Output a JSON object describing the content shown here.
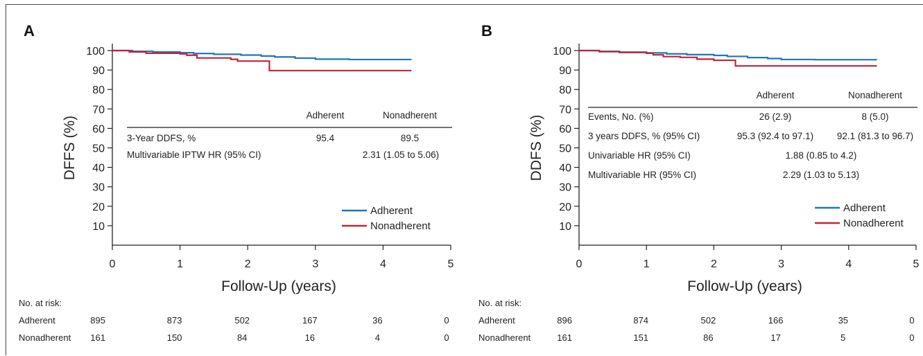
{
  "colors": {
    "adherent": "#1f77b4",
    "nonadherent": "#c0243a"
  },
  "panels": [
    {
      "label": "A",
      "ylabel": "DFFS (%)",
      "xlabel": "Follow-Up (years)",
      "table": {
        "headers": [
          "Adherent",
          "Nonadherent"
        ],
        "rows": [
          {
            "label": "3-Year DDFS, %",
            "adherent": "95.4",
            "nonadherent": "89.5"
          },
          {
            "label": "Multivariable IPTW HR (95% CI)",
            "merged": "2.31 (1.05 to 5.06)"
          }
        ]
      },
      "legend": [
        "Adherent",
        "Nonadherent"
      ],
      "risk": {
        "title": "No. at risk:",
        "rows": [
          {
            "label": "Adherent",
            "values": [
              "895",
              "873",
              "502",
              "167",
              "36",
              "0"
            ]
          },
          {
            "label": "Nonadherent",
            "values": [
              "161",
              "150",
              "84",
              "16",
              "4",
              "0"
            ]
          }
        ]
      }
    },
    {
      "label": "B",
      "ylabel": "DDFS (%)",
      "xlabel": "Follow-Up (years)",
      "table": {
        "headers": [
          "Adherent",
          "Nonadherent"
        ],
        "rows": [
          {
            "label": "Events, No. (%)",
            "adherent": "26 (2.9)",
            "nonadherent": "8 (5.0)"
          },
          {
            "label": "3 years DDFS, % (95% CI)",
            "adherent": "95.3 (92.4 to 97.1)",
            "nonadherent": "92.1 (81.3 to 96.7)"
          },
          {
            "label": "Univariable HR (95% CI)",
            "merged": "1.88 (0.85 to 4.2)"
          },
          {
            "label": "Multivariable HR (95% CI)",
            "merged": "2.29 (1.03 to 5.13)"
          }
        ]
      },
      "legend": [
        "Adherent",
        "Nonadherent"
      ],
      "risk": {
        "title": "No. at risk:",
        "rows": [
          {
            "label": "Adherent",
            "values": [
              "896",
              "874",
              "502",
              "166",
              "35",
              "0"
            ]
          },
          {
            "label": "Nonadherent",
            "values": [
              "161",
              "151",
              "86",
              "17",
              "5",
              "0"
            ]
          }
        ]
      }
    }
  ],
  "chart_data": [
    {
      "type": "line",
      "xlabel": "Follow-Up (years)",
      "ylabel": "DFFS (%)",
      "xlim": [
        0,
        5
      ],
      "ylim": [
        0,
        100
      ],
      "xticks": [
        0,
        1,
        2,
        3,
        4,
        5
      ],
      "yticks": [
        10,
        20,
        30,
        40,
        50,
        60,
        70,
        80,
        90,
        100
      ],
      "grid": false,
      "legend_position": "bottom-right",
      "series": [
        {
          "name": "Adherent",
          "points": [
            [
              0,
              100
            ],
            [
              0.3,
              99.6
            ],
            [
              0.6,
              99.3
            ],
            [
              1.0,
              98.9
            ],
            [
              1.2,
              98.5
            ],
            [
              1.5,
              98.1
            ],
            [
              1.9,
              97.7
            ],
            [
              2.2,
              97.2
            ],
            [
              2.4,
              96.7
            ],
            [
              2.7,
              96.1
            ],
            [
              3.0,
              95.6
            ],
            [
              3.5,
              95.4
            ],
            [
              4.42,
              95.4
            ]
          ]
        },
        {
          "name": "Nonadherent",
          "points": [
            [
              0,
              100
            ],
            [
              0.25,
              99.3
            ],
            [
              0.5,
              98.6
            ],
            [
              1.0,
              98.3
            ],
            [
              1.1,
              97.6
            ],
            [
              1.25,
              96.2
            ],
            [
              1.65,
              96.2
            ],
            [
              1.75,
              95.5
            ],
            [
              1.85,
              94.6
            ],
            [
              2.3,
              94.6
            ],
            [
              2.32,
              89.7
            ],
            [
              4.42,
              89.7
            ]
          ]
        }
      ]
    },
    {
      "type": "line",
      "xlabel": "Follow-Up (years)",
      "ylabel": "DDFS (%)",
      "xlim": [
        0,
        5
      ],
      "ylim": [
        0,
        100
      ],
      "xticks": [
        0,
        1,
        2,
        3,
        4,
        5
      ],
      "yticks": [
        10,
        20,
        30,
        40,
        50,
        60,
        70,
        80,
        90,
        100
      ],
      "grid": false,
      "legend_position": "bottom-right",
      "series": [
        {
          "name": "Adherent",
          "points": [
            [
              0,
              100
            ],
            [
              0.3,
              99.6
            ],
            [
              0.6,
              99.2
            ],
            [
              1.0,
              98.8
            ],
            [
              1.3,
              98.3
            ],
            [
              1.6,
              97.9
            ],
            [
              2.0,
              97.5
            ],
            [
              2.2,
              97.0
            ],
            [
              2.5,
              96.4
            ],
            [
              2.8,
              95.9
            ],
            [
              3.0,
              95.4
            ],
            [
              3.5,
              95.3
            ],
            [
              4.42,
              95.3
            ]
          ]
        },
        {
          "name": "Nonadherent",
          "points": [
            [
              0,
              100
            ],
            [
              0.3,
              99.4
            ],
            [
              0.6,
              99.0
            ],
            [
              1.0,
              98.6
            ],
            [
              1.1,
              97.8
            ],
            [
              1.25,
              96.9
            ],
            [
              1.5,
              96.5
            ],
            [
              1.75,
              95.6
            ],
            [
              2.0,
              95.0
            ],
            [
              2.3,
              95.0
            ],
            [
              2.32,
              92.1
            ],
            [
              4.42,
              92.1
            ]
          ]
        }
      ]
    }
  ]
}
